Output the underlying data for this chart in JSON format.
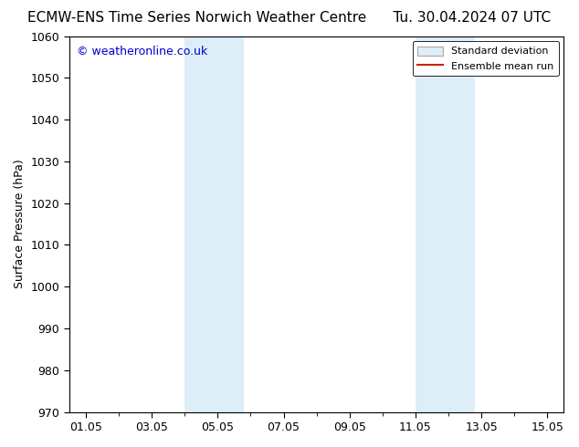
{
  "title_left": "ECMW-ENS Time Series Norwich Weather Centre",
  "title_right": "Tu. 30.04.2024 07 UTC",
  "ylabel": "Surface Pressure (hPa)",
  "ylim": [
    970,
    1060
  ],
  "yticks": [
    970,
    980,
    990,
    1000,
    1010,
    1020,
    1030,
    1040,
    1050,
    1060
  ],
  "xlim": [
    0.5,
    15.5
  ],
  "xtick_labels": [
    "01.05",
    "03.05",
    "05.05",
    "07.05",
    "09.05",
    "11.05",
    "13.05",
    "15.05"
  ],
  "xtick_positions": [
    1,
    3,
    5,
    7,
    9,
    11,
    13,
    15
  ],
  "shaded_bands": [
    {
      "x_start": 4.0,
      "x_end": 5.8,
      "color": "#ddeef8"
    },
    {
      "x_start": 11.0,
      "x_end": 12.8,
      "color": "#ddeef8"
    }
  ],
  "watermark_text": "© weatheronline.co.uk",
  "watermark_color": "#0000cc",
  "watermark_fontsize": 9,
  "legend_std_dev_label": "Standard deviation",
  "legend_mean_label": "Ensemble mean run",
  "legend_std_color": "#ddeef8",
  "legend_std_edgecolor": "#aaaaaa",
  "legend_mean_color": "#cc2200",
  "background_color": "#ffffff",
  "plot_bg_color": "#ffffff",
  "title_fontsize": 11,
  "axis_label_fontsize": 9,
  "tick_fontsize": 9,
  "legend_fontsize": 8
}
